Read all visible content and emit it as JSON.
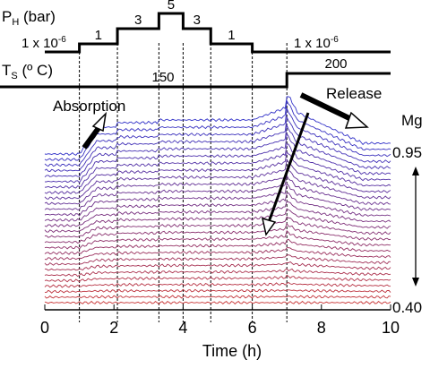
{
  "chart_data": {
    "type": "line",
    "xlabel": "Time (h)",
    "xlim": [
      0,
      10
    ],
    "xticks": [
      0,
      2,
      4,
      6,
      8,
      10
    ],
    "vertical_guides": [
      1,
      2.1,
      3.3,
      4,
      4.8,
      6,
      7
    ],
    "pressure_profile": {
      "label_main": "P",
      "label_sub": "H",
      "label_unit": " (bar)",
      "levels": [
        {
          "from": 0,
          "to": 1,
          "label": "1 x 10",
          "exp": "-6"
        },
        {
          "from": 1,
          "to": 2.1,
          "label": "1"
        },
        {
          "from": 2.1,
          "to": 3.3,
          "label": "3"
        },
        {
          "from": 3.3,
          "to": 4,
          "label": "5"
        },
        {
          "from": 4,
          "to": 4.8,
          "label": "3"
        },
        {
          "from": 4.8,
          "to": 6,
          "label": "1"
        },
        {
          "from": 6,
          "to": 10,
          "label": "1 x 10",
          "exp": "-6"
        }
      ],
      "level_values": [
        1e-06,
        1,
        3,
        5,
        3,
        1,
        1e-06
      ]
    },
    "temperature_profile": {
      "label_main": "T",
      "label_sub": "S",
      "label_unit": " (º C)",
      "segments": [
        {
          "from": 0,
          "to": 7,
          "value": 150,
          "label": "150"
        },
        {
          "from": 7,
          "to": 10,
          "value": 200,
          "label": "200"
        }
      ]
    },
    "composition_axis": {
      "label": "Mg",
      "top": "0.95",
      "bottom": "0.40",
      "n_curves": 28
    },
    "annotations": {
      "absorption": "Absorption",
      "release": "Release"
    },
    "colors": {
      "top_series": "#3232c8",
      "bottom_series": "#c83232",
      "profile_line": "#000000"
    }
  }
}
